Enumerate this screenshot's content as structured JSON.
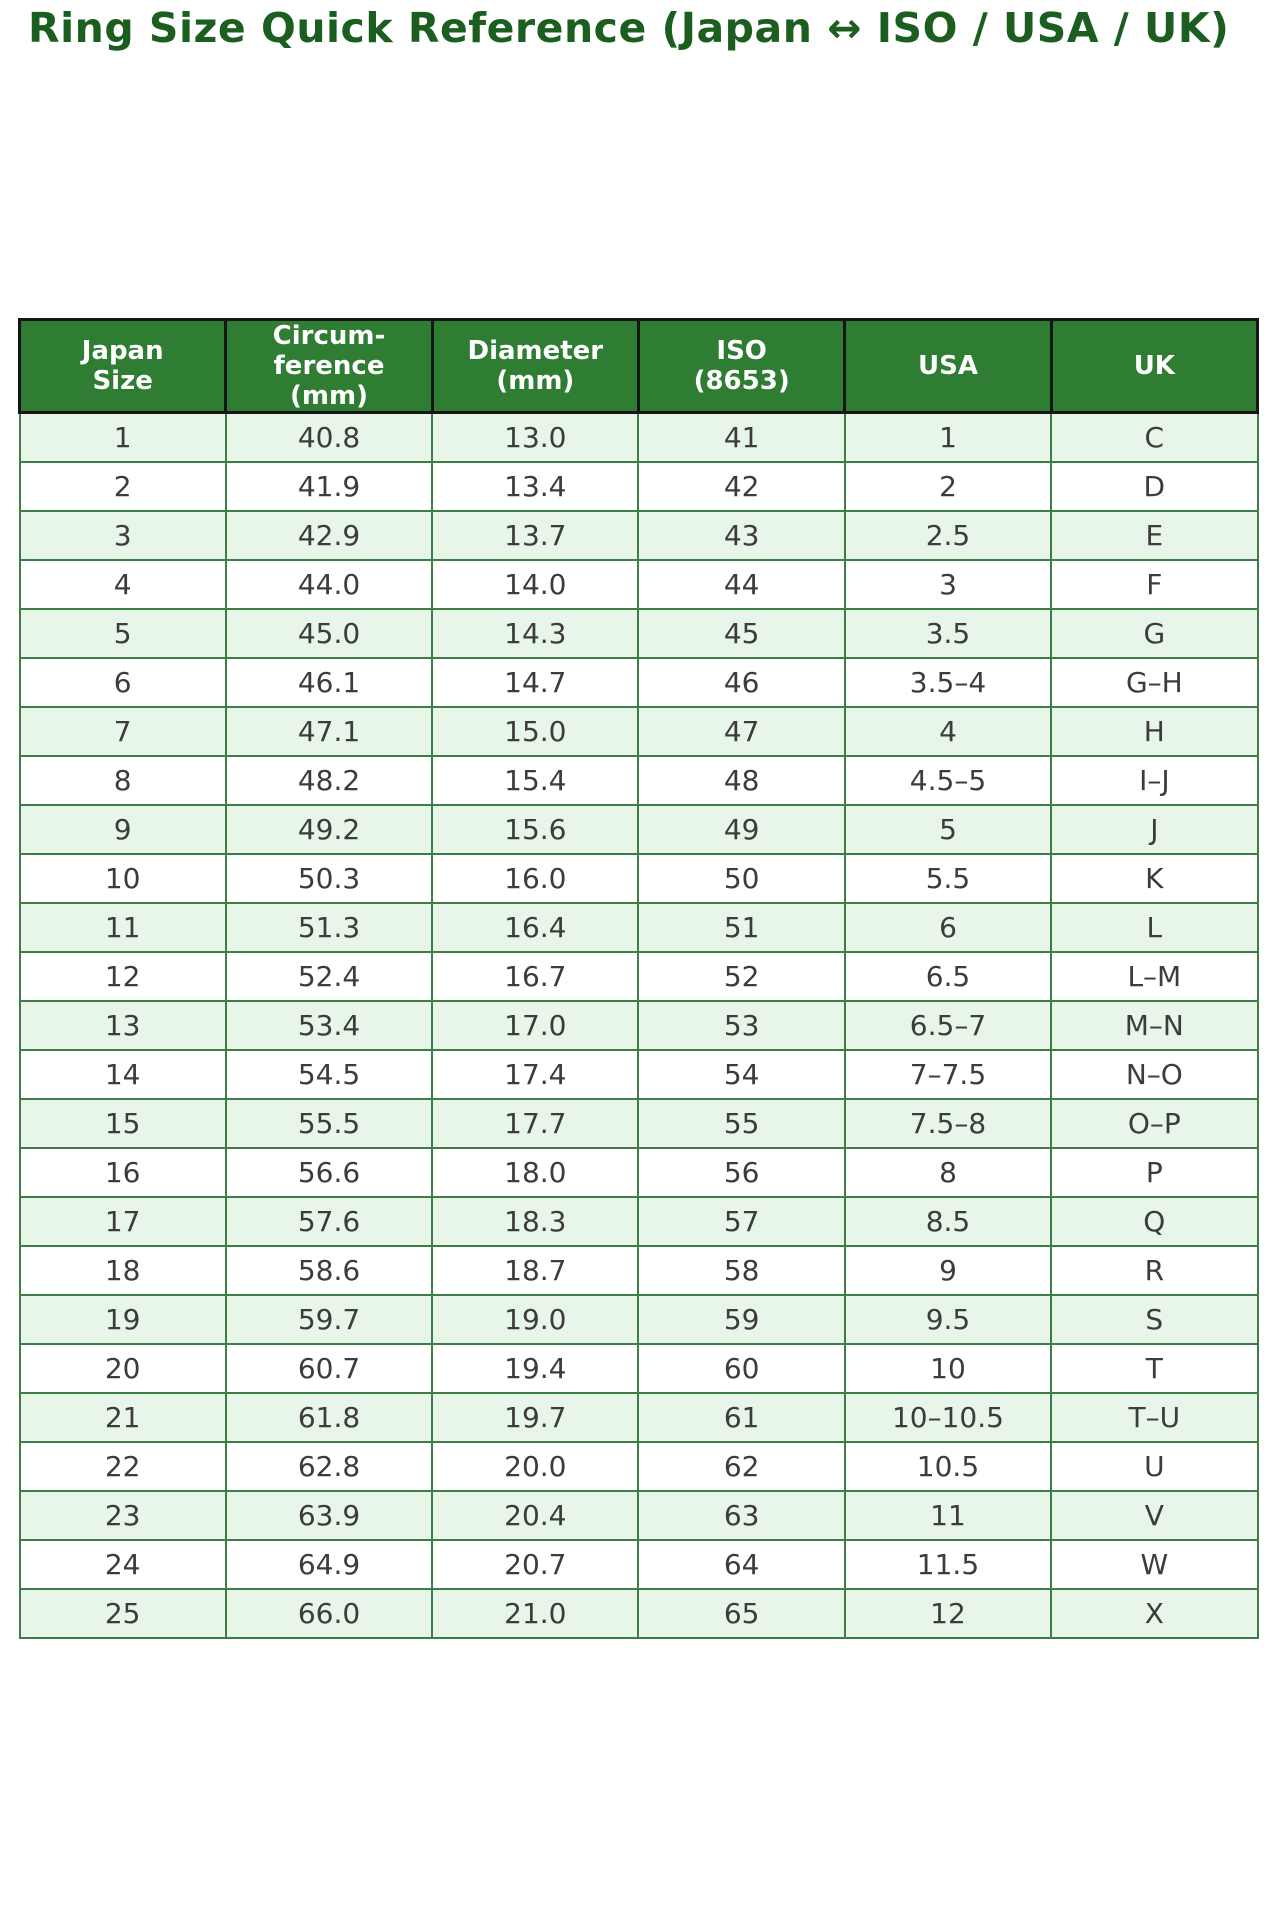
{
  "title": "Ring Size Quick Reference (Japan ↔ ISO / USA / UK)",
  "chart_data": {
    "type": "table",
    "title": "Ring Size Quick Reference (Japan ↔ ISO / USA / UK)",
    "columns": [
      "Japan\nSize",
      "Circum-\nference\n(mm)",
      "Diameter\n(mm)",
      "ISO\n(8653)",
      "USA",
      "UK"
    ],
    "rows": [
      [
        "1",
        "40.8",
        "13.0",
        "41",
        "1",
        "C"
      ],
      [
        "2",
        "41.9",
        "13.4",
        "42",
        "2",
        "D"
      ],
      [
        "3",
        "42.9",
        "13.7",
        "43",
        "2.5",
        "E"
      ],
      [
        "4",
        "44.0",
        "14.0",
        "44",
        "3",
        "F"
      ],
      [
        "5",
        "45.0",
        "14.3",
        "45",
        "3.5",
        "G"
      ],
      [
        "6",
        "46.1",
        "14.7",
        "46",
        "3.5–4",
        "G–H"
      ],
      [
        "7",
        "47.1",
        "15.0",
        "47",
        "4",
        "H"
      ],
      [
        "8",
        "48.2",
        "15.4",
        "48",
        "4.5–5",
        "I–J"
      ],
      [
        "9",
        "49.2",
        "15.6",
        "49",
        "5",
        "J"
      ],
      [
        "10",
        "50.3",
        "16.0",
        "50",
        "5.5",
        "K"
      ],
      [
        "11",
        "51.3",
        "16.4",
        "51",
        "6",
        "L"
      ],
      [
        "12",
        "52.4",
        "16.7",
        "52",
        "6.5",
        "L–M"
      ],
      [
        "13",
        "53.4",
        "17.0",
        "53",
        "6.5–7",
        "M–N"
      ],
      [
        "14",
        "54.5",
        "17.4",
        "54",
        "7–7.5",
        "N–O"
      ],
      [
        "15",
        "55.5",
        "17.7",
        "55",
        "7.5–8",
        "O–P"
      ],
      [
        "16",
        "56.6",
        "18.0",
        "56",
        "8",
        "P"
      ],
      [
        "17",
        "57.6",
        "18.3",
        "57",
        "8.5",
        "Q"
      ],
      [
        "18",
        "58.6",
        "18.7",
        "58",
        "9",
        "R"
      ],
      [
        "19",
        "59.7",
        "19.0",
        "59",
        "9.5",
        "S"
      ],
      [
        "20",
        "60.7",
        "19.4",
        "60",
        "10",
        "T"
      ],
      [
        "21",
        "61.8",
        "19.7",
        "61",
        "10–10.5",
        "T–U"
      ],
      [
        "22",
        "62.8",
        "20.0",
        "62",
        "10.5",
        "U"
      ],
      [
        "23",
        "63.9",
        "20.4",
        "63",
        "11",
        "V"
      ],
      [
        "24",
        "64.9",
        "20.7",
        "64",
        "11.5",
        "W"
      ],
      [
        "25",
        "66.0",
        "21.0",
        "65",
        "12",
        "X"
      ]
    ],
    "layout": {
      "grid": true,
      "header_position": "top",
      "row_striping": "odd-rows-light-green"
    }
  },
  "colors": {
    "header_bg": "#2e7d32",
    "header_text": "#ffffff",
    "header_border": "#161616",
    "body_border": "#3f7d46",
    "row_bg": "#ffffff",
    "row_alt_bg": "#e8f5e9",
    "text_color": "#3c3c3c",
    "title_color": "#1b5e20",
    "page_bg": "#ffffff"
  }
}
